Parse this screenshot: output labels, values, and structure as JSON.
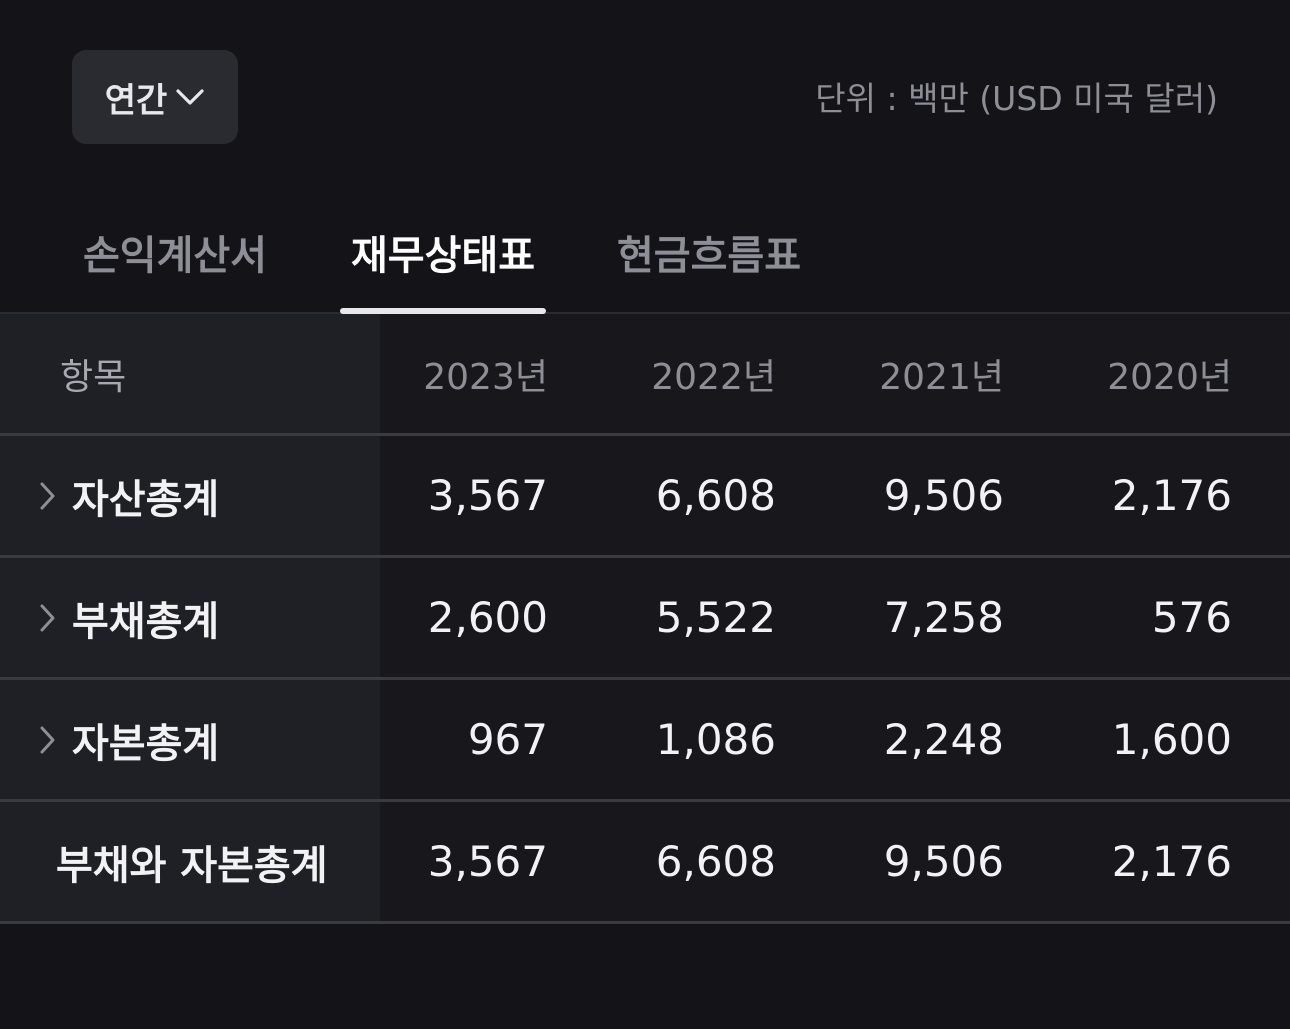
{
  "period": {
    "label": "연간"
  },
  "unit_text": "단위 : 백만 (USD 미국 달러)",
  "tabs": [
    {
      "label": "손익계산서"
    },
    {
      "label": "재무상태표"
    },
    {
      "label": "현금흐름표"
    }
  ],
  "table": {
    "header": {
      "label": "항목",
      "years": [
        "2023년",
        "2022년",
        "2021년",
        "2020년"
      ]
    },
    "rows": [
      {
        "label": "자산총계",
        "values": [
          "3,567",
          "6,608",
          "9,506",
          "2,176"
        ]
      },
      {
        "label": "부채총계",
        "values": [
          "2,600",
          "5,522",
          "7,258",
          "576"
        ]
      },
      {
        "label": "자본총계",
        "values": [
          "967",
          "1,086",
          "2,248",
          "1,600"
        ]
      },
      {
        "label": "부채와 자본총계",
        "values": [
          "3,567",
          "6,608",
          "9,506",
          "2,176"
        ]
      }
    ]
  }
}
